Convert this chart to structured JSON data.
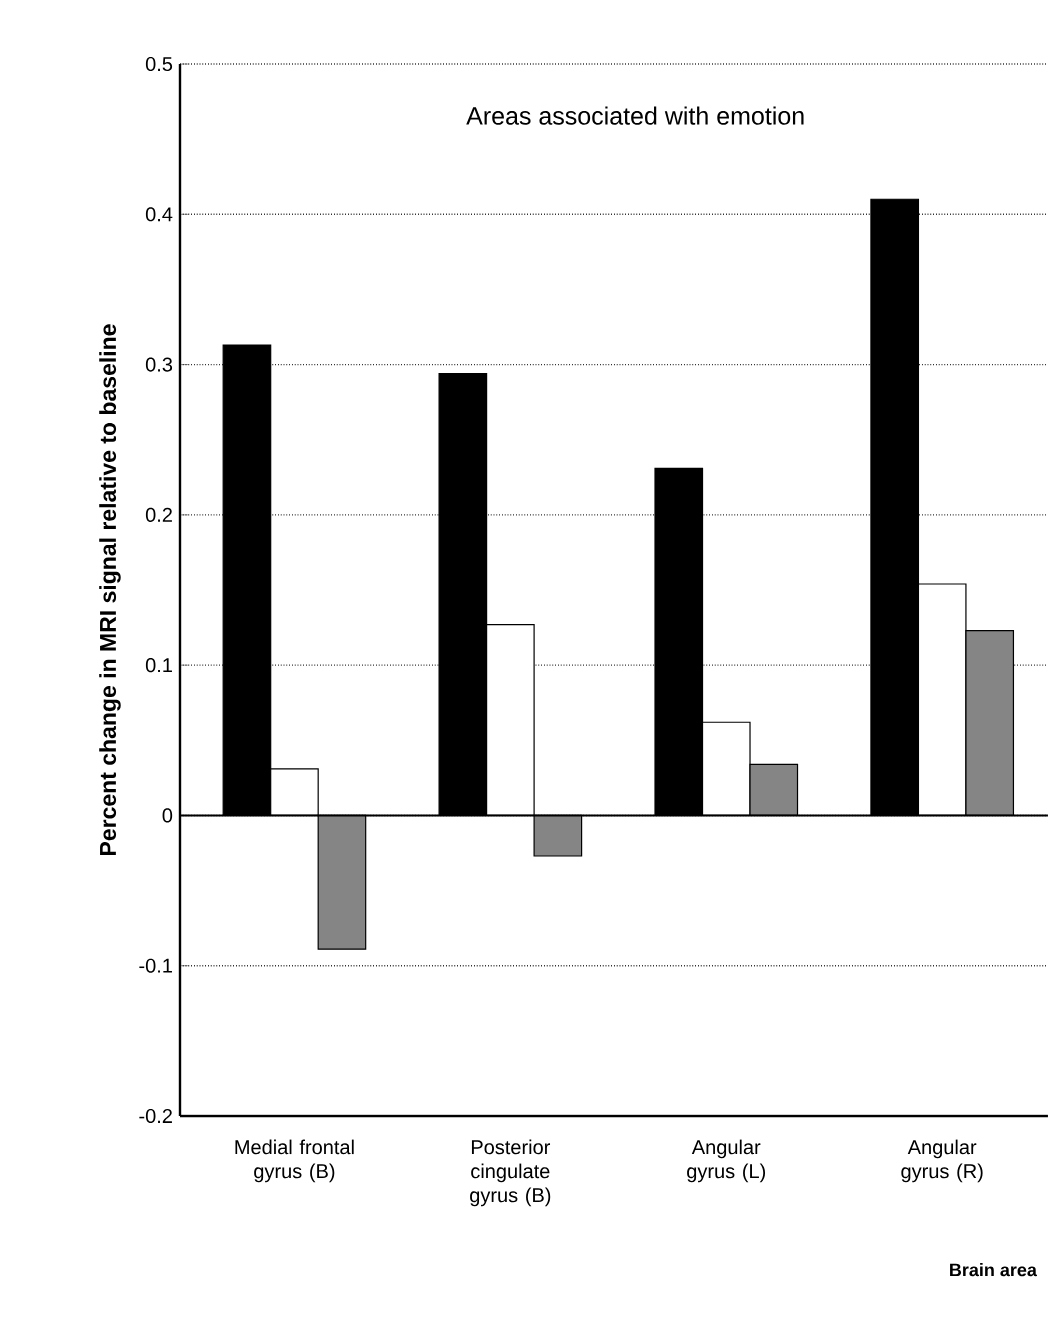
{
  "chart_data": {
    "type": "bar",
    "title": "Areas associated with emotion",
    "xlabel": "Brain area",
    "ylabel": "Percent change in MRI signal relative to baseline",
    "categories": [
      "Medial frontal gyrus (B)",
      "Posterior cingulate gyrus (B)",
      "Angular gyrus (L)",
      "Angular gyrus (R)"
    ],
    "series": [
      {
        "color": "#000000",
        "values": [
          0.313,
          0.294,
          0.231,
          0.41
        ]
      },
      {
        "color": "#ffffff",
        "values": [
          0.031,
          0.127,
          0.062,
          0.154
        ]
      },
      {
        "color": "#858585",
        "values": [
          -0.089,
          -0.027,
          0.034,
          0.123
        ]
      }
    ],
    "ylim": [
      -0.2,
      0.5
    ],
    "yticks": [
      -0.2,
      -0.1,
      0,
      0.1,
      0.2,
      0.3,
      0.4,
      0.5
    ],
    "grid": "y"
  }
}
